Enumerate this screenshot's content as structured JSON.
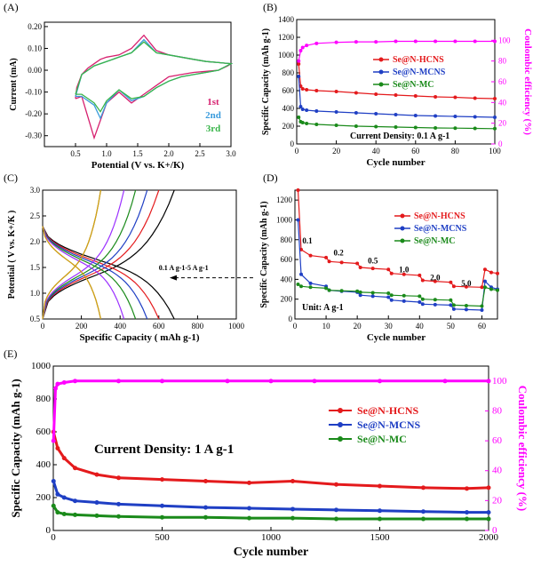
{
  "chart_data": [
    {
      "id": "A",
      "panel_label": "(A)",
      "type": "line",
      "xlabel": "Potential (V vs. K+/K)",
      "ylabel": "Current (mA)",
      "xlim": [
        0.0,
        3.0
      ],
      "ylim": [
        -0.35,
        0.22
      ],
      "xticks": [
        "0.5",
        "1.0",
        "1.5",
        "2.0",
        "2.5",
        "3.0"
      ],
      "xtick_values": [
        0.5,
        1.0,
        1.5,
        2.0,
        2.5,
        3.0
      ],
      "yticks": [
        "-0.30",
        "-0.20",
        "-0.10",
        "0.00",
        "0.10",
        "0.20"
      ],
      "ytick_values": [
        -0.3,
        -0.2,
        -0.1,
        0.0,
        0.1,
        0.2
      ],
      "legend": [
        "1st",
        "2nd",
        "3rd"
      ],
      "series": [
        {
          "name": "1st",
          "color": "#d61f6e",
          "x": [
            0.5,
            0.52,
            0.6,
            0.7,
            0.8,
            0.9,
            1.0,
            1.2,
            1.4,
            1.6,
            1.8,
            2.0,
            2.2,
            2.4,
            2.6,
            2.8,
            3.0,
            2.95,
            2.8,
            2.6,
            2.4,
            2.2,
            2.0,
            1.9,
            1.8,
            1.7,
            1.6,
            1.5,
            1.4,
            1.2,
            1.0,
            0.8,
            0.6,
            0.5
          ],
          "y": [
            -0.13,
            -0.08,
            -0.02,
            0.01,
            0.03,
            0.05,
            0.06,
            0.07,
            0.1,
            0.16,
            0.09,
            0.07,
            0.06,
            0.05,
            0.04,
            0.035,
            0.03,
            0.02,
            0.0,
            -0.005,
            -0.01,
            -0.02,
            -0.03,
            -0.05,
            -0.07,
            -0.09,
            -0.11,
            -0.13,
            -0.15,
            -0.1,
            -0.15,
            -0.31,
            -0.12,
            -0.13
          ]
        },
        {
          "name": "2nd",
          "color": "#3a9bdc",
          "x": [
            0.5,
            0.6,
            0.8,
            1.0,
            1.2,
            1.4,
            1.6,
            1.8,
            2.0,
            2.2,
            2.4,
            2.6,
            2.8,
            3.0,
            2.8,
            2.6,
            2.4,
            2.2,
            2.0,
            1.8,
            1.6,
            1.4,
            1.2,
            1.0,
            0.9,
            0.8,
            0.6,
            0.5
          ],
          "y": [
            -0.12,
            -0.02,
            0.02,
            0.04,
            0.06,
            0.08,
            0.14,
            0.08,
            0.07,
            0.06,
            0.05,
            0.04,
            0.035,
            0.03,
            0.0,
            -0.01,
            -0.02,
            -0.03,
            -0.05,
            -0.08,
            -0.12,
            -0.14,
            -0.09,
            -0.15,
            -0.22,
            -0.16,
            -0.12,
            -0.12
          ]
        },
        {
          "name": "3rd",
          "color": "#39b54a",
          "x": [
            0.5,
            0.6,
            0.8,
            1.0,
            1.2,
            1.4,
            1.6,
            1.8,
            2.0,
            2.2,
            2.4,
            2.6,
            2.8,
            3.0,
            2.8,
            2.6,
            2.4,
            2.2,
            2.0,
            1.8,
            1.6,
            1.4,
            1.2,
            1.0,
            0.9,
            0.8,
            0.6,
            0.5
          ],
          "y": [
            -0.11,
            -0.02,
            0.02,
            0.04,
            0.06,
            0.08,
            0.13,
            0.08,
            0.07,
            0.06,
            0.05,
            0.04,
            0.035,
            0.03,
            0.0,
            -0.01,
            -0.02,
            -0.03,
            -0.05,
            -0.08,
            -0.12,
            -0.13,
            -0.09,
            -0.14,
            -0.19,
            -0.15,
            -0.11,
            -0.11
          ]
        }
      ]
    },
    {
      "id": "B",
      "panel_label": "(B)",
      "type": "scatter",
      "xlabel": "Cycle number",
      "ylabel": "Specific Capacity (mAh g-1)",
      "ylabel_right": "Coulombic efficiency (%)",
      "xlim": [
        0,
        100
      ],
      "ylim": [
        0,
        1400
      ],
      "ylim_right": [
        0,
        120
      ],
      "xticks": [
        "0",
        "20",
        "40",
        "60",
        "80",
        "100"
      ],
      "xtick_values": [
        0,
        20,
        40,
        60,
        80,
        100
      ],
      "yticks": [
        "0",
        "200",
        "400",
        "600",
        "800",
        "1000",
        "1200",
        "1400"
      ],
      "ytick_values": [
        0,
        200,
        400,
        600,
        800,
        1000,
        1200,
        1400
      ],
      "yticks_right": [
        "0",
        "20",
        "40",
        "60",
        "80",
        "100"
      ],
      "ytick_values_right": [
        0,
        20,
        40,
        60,
        80,
        100
      ],
      "annotation": "Current Density: 0.1 A g-1",
      "legend": [
        "Se@N-HCNS",
        "Se@N-MCNS",
        "Se@N-MC"
      ],
      "series": [
        {
          "name": "Se@N-HCNS",
          "color": "#e41a1c",
          "x": [
            1,
            2,
            3,
            5,
            10,
            20,
            30,
            40,
            50,
            60,
            70,
            80,
            90,
            100
          ],
          "y": [
            900,
            650,
            620,
            610,
            600,
            590,
            575,
            560,
            550,
            540,
            530,
            525,
            515,
            510
          ]
        },
        {
          "name": "Se@N-MCNS",
          "color": "#1f3fc4",
          "x": [
            1,
            2,
            3,
            5,
            10,
            20,
            30,
            40,
            50,
            60,
            70,
            80,
            90,
            100
          ],
          "y": [
            760,
            420,
            390,
            380,
            370,
            360,
            350,
            340,
            330,
            320,
            315,
            310,
            305,
            300
          ]
        },
        {
          "name": "Se@N-MC",
          "color": "#1a8a1a",
          "x": [
            1,
            2,
            3,
            5,
            10,
            20,
            30,
            40,
            50,
            60,
            70,
            80,
            90,
            100
          ],
          "y": [
            300,
            250,
            240,
            230,
            220,
            210,
            200,
            195,
            190,
            185,
            180,
            178,
            175,
            172
          ]
        },
        {
          "name": "Coulombic efficiency",
          "axis": "right",
          "color": "#ff00ff",
          "x": [
            1,
            2,
            3,
            5,
            10,
            20,
            30,
            40,
            50,
            60,
            70,
            80,
            90,
            100
          ],
          "y": [
            80,
            90,
            93,
            95,
            97,
            98,
            98.5,
            98.5,
            99,
            99,
            99,
            99,
            99,
            99
          ]
        }
      ]
    },
    {
      "id": "C",
      "panel_label": "(C)",
      "type": "line",
      "xlabel": "Specific Capacity ( mAh g-1)",
      "ylabel": "Potential ( V vs. K+/K )",
      "xlim": [
        0,
        1000
      ],
      "ylim": [
        0.5,
        3.0
      ],
      "xticks": [
        "0",
        "200",
        "400",
        "600",
        "800",
        "1000"
      ],
      "xtick_values": [
        0,
        200,
        400,
        600,
        800,
        1000
      ],
      "yticks": [
        "0.5",
        "1.0",
        "1.5",
        "2.0",
        "2.5",
        "3.0"
      ],
      "ytick_values": [
        0.5,
        1.0,
        1.5,
        2.0,
        2.5,
        3.0
      ],
      "annotation": "0.1 A g-1-5 A g-1",
      "series": [
        {
          "color": "#000000",
          "discharge_capacity": 680,
          "charge_capacity": 680
        },
        {
          "color": "#e41a1c",
          "discharge_capacity": 600,
          "charge_capacity": 600
        },
        {
          "color": "#1f3fc4",
          "discharge_capacity": 540,
          "charge_capacity": 540
        },
        {
          "color": "#1a8a1a",
          "discharge_capacity": 480,
          "charge_capacity": 480
        },
        {
          "color": "#9b30ff",
          "discharge_capacity": 420,
          "charge_capacity": 420
        },
        {
          "color": "#7f7f00",
          "discharge_capacity": 300,
          "charge_capacity": 300
        },
        {
          "color": "#d4a017",
          "discharge_capacity": 300,
          "charge_capacity": 300
        }
      ]
    },
    {
      "id": "D",
      "panel_label": "(D)",
      "type": "scatter",
      "xlabel": "Cycle number",
      "ylabel": "Specific Capacity (mAh g-1)",
      "xlim": [
        0,
        65
      ],
      "ylim": [
        0,
        1300
      ],
      "xticks": [
        "0",
        "10",
        "20",
        "30",
        "40",
        "50",
        "60"
      ],
      "xtick_values": [
        0,
        10,
        20,
        30,
        40,
        50,
        60
      ],
      "yticks": [
        "0",
        "200",
        "400",
        "600",
        "800",
        "1000",
        "1200"
      ],
      "ytick_values": [
        0,
        200,
        400,
        600,
        800,
        1000,
        1200
      ],
      "rate_labels": [
        "0.1",
        "0.2",
        "0.5",
        "1.0",
        "2.0",
        "5.0"
      ],
      "rate_label_positions": [
        [
          4,
          760
        ],
        [
          14,
          640
        ],
        [
          25,
          560
        ],
        [
          35,
          470
        ],
        [
          45,
          390
        ],
        [
          55,
          330
        ]
      ],
      "annotation": "Unit: A g-1",
      "legend": [
        "Se@N-HCNS",
        "Se@N-MCNS",
        "Se@N-MC"
      ],
      "series": [
        {
          "name": "Se@N-HCNS",
          "color": "#e41a1c",
          "x": [
            1,
            2,
            5,
            10,
            11,
            15,
            20,
            21,
            25,
            30,
            31,
            35,
            40,
            41,
            45,
            50,
            51,
            55,
            60,
            61,
            63,
            65
          ],
          "y": [
            1300,
            700,
            640,
            620,
            580,
            570,
            560,
            520,
            510,
            500,
            460,
            450,
            440,
            390,
            380,
            370,
            330,
            325,
            320,
            500,
            470,
            460
          ]
        },
        {
          "name": "Se@N-MCNS",
          "color": "#1f3fc4",
          "x": [
            1,
            2,
            5,
            10,
            11,
            15,
            20,
            21,
            25,
            30,
            31,
            35,
            40,
            41,
            45,
            50,
            51,
            55,
            60,
            61,
            63,
            65
          ],
          "y": [
            1000,
            450,
            360,
            330,
            290,
            280,
            270,
            240,
            230,
            220,
            190,
            180,
            170,
            150,
            145,
            140,
            100,
            95,
            90,
            380,
            320,
            300
          ]
        },
        {
          "name": "Se@N-MC",
          "color": "#1a8a1a",
          "x": [
            1,
            2,
            5,
            10,
            11,
            15,
            20,
            21,
            25,
            30,
            31,
            35,
            40,
            41,
            45,
            50,
            51,
            55,
            60,
            61,
            63,
            65
          ],
          "y": [
            350,
            330,
            320,
            310,
            290,
            285,
            280,
            270,
            265,
            260,
            240,
            235,
            230,
            200,
            195,
            190,
            140,
            135,
            130,
            320,
            300,
            290
          ]
        }
      ]
    },
    {
      "id": "E",
      "panel_label": "(E)",
      "type": "scatter",
      "xlabel": "Cycle number",
      "ylabel": "Specific Capacity (mAh g-1)",
      "ylabel_right": "Coulombic efficiency (%)",
      "xlim": [
        0,
        2000
      ],
      "ylim": [
        0,
        1000
      ],
      "ylim_right": [
        0,
        110
      ],
      "xticks": [
        "0",
        "500",
        "1000",
        "1500",
        "2000"
      ],
      "xtick_values": [
        0,
        500,
        1000,
        1500,
        2000
      ],
      "yticks": [
        "0",
        "200",
        "400",
        "600",
        "800",
        "1000"
      ],
      "ytick_values": [
        0,
        200,
        400,
        600,
        800,
        1000
      ],
      "yticks_right": [
        "0",
        "20",
        "40",
        "60",
        "80",
        "100"
      ],
      "ytick_values_right": [
        0,
        20,
        40,
        60,
        80,
        100
      ],
      "annotation": "Current Density: 1 A g-1",
      "legend": [
        "Se@N-HCNS",
        "Se@N-MCNS",
        "Se@N-MC"
      ],
      "series": [
        {
          "name": "Se@N-HCNS",
          "color": "#e41a1c",
          "x": [
            1,
            20,
            50,
            100,
            200,
            300,
            500,
            700,
            900,
            1100,
            1300,
            1500,
            1700,
            1900,
            2000
          ],
          "y": [
            600,
            500,
            440,
            380,
            340,
            320,
            310,
            300,
            290,
            300,
            280,
            270,
            260,
            255,
            260
          ]
        },
        {
          "name": "Se@N-MCNS",
          "color": "#1f3fc4",
          "x": [
            1,
            20,
            50,
            100,
            200,
            300,
            500,
            700,
            900,
            1100,
            1300,
            1500,
            1700,
            1900,
            2000
          ],
          "y": [
            300,
            220,
            200,
            180,
            170,
            160,
            150,
            140,
            135,
            130,
            125,
            120,
            115,
            110,
            110
          ]
        },
        {
          "name": "Se@N-MC",
          "color": "#1a8a1a",
          "x": [
            1,
            20,
            50,
            100,
            200,
            300,
            500,
            700,
            900,
            1100,
            1300,
            1500,
            1700,
            1900,
            2000
          ],
          "y": [
            150,
            110,
            100,
            95,
            90,
            85,
            80,
            80,
            75,
            75,
            70,
            70,
            70,
            70,
            70
          ]
        },
        {
          "name": "Coulombic efficiency",
          "axis": "right",
          "color": "#ff00ff",
          "x": [
            1,
            10,
            20,
            50,
            100,
            300,
            500,
            800,
            1000,
            1200,
            1500,
            1800,
            2000
          ],
          "y": [
            60,
            95,
            98,
            99,
            100,
            100,
            100,
            100,
            100,
            100,
            100,
            100,
            100
          ]
        }
      ]
    }
  ]
}
